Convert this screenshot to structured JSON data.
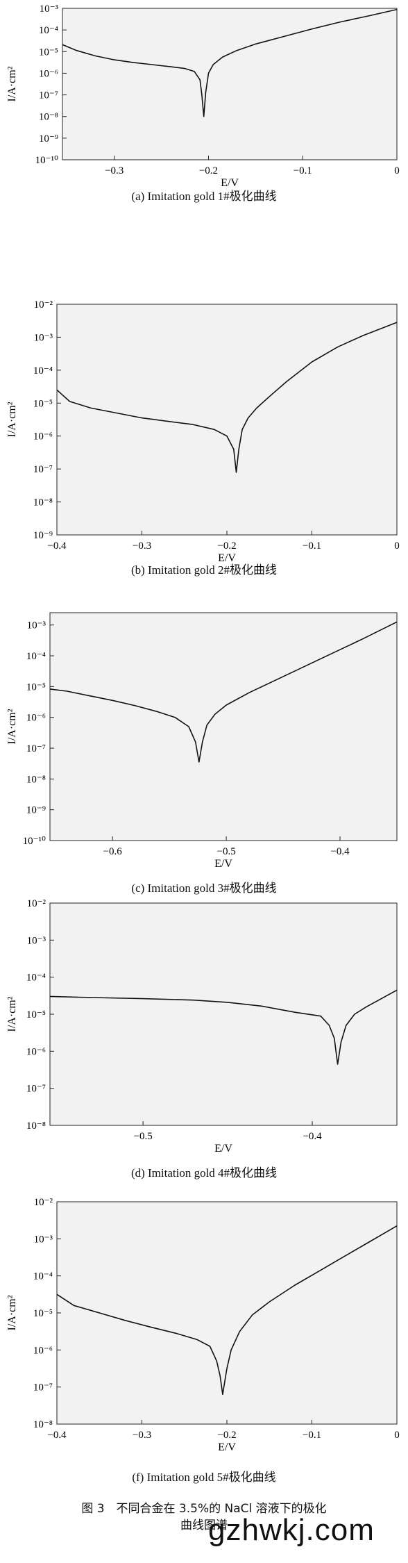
{
  "chart_data": [
    {
      "type": "line",
      "xlabel": "E/V",
      "ylabel": "I/A·cm²",
      "xlim": [
        -0.355,
        0.0
      ],
      "ylim": [
        -10,
        -3
      ],
      "ylog": true,
      "x_ticks": [
        -0.3,
        -0.2,
        -0.1,
        0
      ],
      "x_tick_labels": [
        "−0.3",
        "−0.2",
        "−0.1",
        "0"
      ],
      "y_ticks": [
        -10,
        -9,
        -8,
        -7,
        -6,
        -5,
        -4,
        -3
      ],
      "y_tick_labels": [
        "10⁻¹⁰",
        "10⁻⁹",
        "10⁻⁸",
        "10⁻⁷",
        "10⁻⁶",
        "10⁻⁵",
        "10⁻⁴",
        "10⁻³"
      ],
      "caption": "(a) Imitation gold 1#极化曲线",
      "series": [
        {
          "x": [
            -0.355,
            -0.34,
            -0.32,
            -0.3,
            -0.28,
            -0.26,
            -0.24,
            -0.225,
            -0.215,
            -0.209,
            -0.207,
            -0.205,
            -0.203,
            -0.2,
            -0.195,
            -0.185,
            -0.17,
            -0.15,
            -0.12,
            -0.09,
            -0.06,
            -0.03,
            0.0
          ],
          "y": [
            -4.68,
            -4.95,
            -5.2,
            -5.38,
            -5.5,
            -5.6,
            -5.7,
            -5.78,
            -5.92,
            -6.3,
            -7.0,
            -8.0,
            -6.9,
            -6.0,
            -5.6,
            -5.25,
            -4.95,
            -4.65,
            -4.3,
            -3.95,
            -3.63,
            -3.35,
            -3.05
          ]
        }
      ]
    },
    {
      "type": "line",
      "xlabel": "E/V",
      "ylabel": "I/A·cm²",
      "xlim": [
        -0.4,
        0.0
      ],
      "ylim": [
        -9,
        -2
      ],
      "ylog": true,
      "x_ticks": [
        -0.4,
        -0.3,
        -0.2,
        -0.1,
        0
      ],
      "x_tick_labels": [
        "−0.4",
        "−0.3",
        "−0.2",
        "−0.1",
        "0"
      ],
      "y_ticks": [
        -9,
        -8,
        -7,
        -6,
        -5,
        -4,
        -3,
        -2
      ],
      "y_tick_labels": [
        "10⁻⁹",
        "10⁻⁸",
        "10⁻⁷",
        "10⁻⁶",
        "10⁻⁵",
        "10⁻⁴",
        "10⁻³",
        "10⁻²"
      ],
      "caption": "(b) Imitation gold 2#极化曲线",
      "series": [
        {
          "x": [
            -0.4,
            -0.385,
            -0.36,
            -0.33,
            -0.3,
            -0.27,
            -0.24,
            -0.215,
            -0.2,
            -0.192,
            -0.189,
            -0.186,
            -0.182,
            -0.175,
            -0.165,
            -0.15,
            -0.13,
            -0.1,
            -0.07,
            -0.04,
            0.0
          ],
          "y": [
            -4.6,
            -4.95,
            -5.15,
            -5.3,
            -5.45,
            -5.55,
            -5.65,
            -5.8,
            -6.0,
            -6.4,
            -7.1,
            -6.4,
            -5.8,
            -5.45,
            -5.15,
            -4.8,
            -4.35,
            -3.75,
            -3.3,
            -2.95,
            -2.55
          ]
        }
      ]
    },
    {
      "type": "line",
      "xlabel": "E/V",
      "ylabel": "I/A·cm²",
      "xlim": [
        -0.655,
        -0.35
      ],
      "ylim": [
        -10,
        -2.6
      ],
      "ylog": true,
      "x_ticks": [
        -0.6,
        -0.5,
        -0.4
      ],
      "x_tick_labels": [
        "−0.6",
        "−0.5",
        "−0.4"
      ],
      "y_ticks": [
        -10,
        -9,
        -8,
        -7,
        -6,
        -5,
        -4,
        -3
      ],
      "y_tick_labels": [
        "10⁻¹⁰",
        "10⁻⁹",
        "10⁻⁸",
        "10⁻⁷",
        "10⁻⁶",
        "10⁻⁵",
        "10⁻⁴",
        "10⁻³"
      ],
      "caption": "(c) Imitation gold 3#极化曲线",
      "series": [
        {
          "x": [
            -0.655,
            -0.64,
            -0.62,
            -0.6,
            -0.58,
            -0.56,
            -0.545,
            -0.533,
            -0.527,
            -0.524,
            -0.521,
            -0.517,
            -0.51,
            -0.5,
            -0.48,
            -0.46,
            -0.44,
            -0.42,
            -0.4,
            -0.38,
            -0.35
          ],
          "y": [
            -5.08,
            -5.15,
            -5.3,
            -5.45,
            -5.62,
            -5.82,
            -6.0,
            -6.3,
            -6.8,
            -7.45,
            -6.8,
            -6.25,
            -5.9,
            -5.6,
            -5.2,
            -4.85,
            -4.5,
            -4.15,
            -3.8,
            -3.45,
            -2.9
          ]
        }
      ]
    },
    {
      "type": "line",
      "xlabel": "E/V",
      "ylabel": "I/A·cm²",
      "xlim": [
        -0.555,
        -0.35
      ],
      "ylim": [
        -8,
        -2
      ],
      "ylog": true,
      "x_ticks": [
        -0.5,
        -0.4
      ],
      "x_tick_labels": [
        "−0.5",
        "−0.4"
      ],
      "y_ticks": [
        -8,
        -7,
        -6,
        -5,
        -4,
        -3,
        -2
      ],
      "y_tick_labels": [
        "10⁻⁸",
        "10⁻⁷",
        "10⁻⁶",
        "10⁻⁵",
        "10⁻⁴",
        "10⁻³",
        "10⁻²"
      ],
      "caption": "(d) Imitation gold 4#极化曲线",
      "series": [
        {
          "x": [
            -0.555,
            -0.53,
            -0.5,
            -0.47,
            -0.45,
            -0.43,
            -0.41,
            -0.395,
            -0.39,
            -0.387,
            -0.385,
            -0.383,
            -0.38,
            -0.375,
            -0.368,
            -0.36,
            -0.35
          ],
          "y": [
            -4.52,
            -4.55,
            -4.58,
            -4.62,
            -4.68,
            -4.78,
            -4.95,
            -5.05,
            -5.3,
            -5.65,
            -6.35,
            -5.75,
            -5.3,
            -5.0,
            -4.8,
            -4.6,
            -4.35
          ]
        }
      ]
    },
    {
      "type": "line",
      "xlabel": "E/V",
      "ylabel": "I/A·cm²",
      "xlim": [
        -0.4,
        0.0
      ],
      "ylim": [
        -8,
        -2
      ],
      "ylog": true,
      "x_ticks": [
        -0.4,
        -0.3,
        -0.2,
        -0.1,
        0
      ],
      "x_tick_labels": [
        "−0.4",
        "−0.3",
        "−0.2",
        "−0.1",
        "0"
      ],
      "y_ticks": [
        -8,
        -7,
        -6,
        -5,
        -4,
        -3,
        -2
      ],
      "y_tick_labels": [
        "10⁻⁸",
        "10⁻⁷",
        "10⁻⁶",
        "10⁻⁵",
        "10⁻⁴",
        "10⁻³",
        "10⁻²"
      ],
      "caption": "(f) Imitation gold 5#极化曲线",
      "series": [
        {
          "x": [
            -0.4,
            -0.38,
            -0.35,
            -0.32,
            -0.29,
            -0.26,
            -0.235,
            -0.22,
            -0.212,
            -0.208,
            -0.205,
            -0.2,
            -0.195,
            -0.185,
            -0.17,
            -0.15,
            -0.12,
            -0.09,
            -0.06,
            -0.03,
            0.0
          ],
          "y": [
            -4.5,
            -4.8,
            -5.0,
            -5.2,
            -5.38,
            -5.55,
            -5.72,
            -5.9,
            -6.3,
            -6.7,
            -7.2,
            -6.5,
            -6.0,
            -5.5,
            -5.05,
            -4.7,
            -4.25,
            -3.85,
            -3.45,
            -3.05,
            -2.65
          ]
        }
      ]
    }
  ],
  "figure_caption_line1": "图 3　不同合金在 3.5%的 NaCl 溶液下的极化",
  "figure_caption_line2": "曲线图谱",
  "watermark": "gzhwkj.com",
  "colors": {
    "line": "#111111",
    "plot_bg": "#f2f2f2",
    "axis": "#222222"
  }
}
